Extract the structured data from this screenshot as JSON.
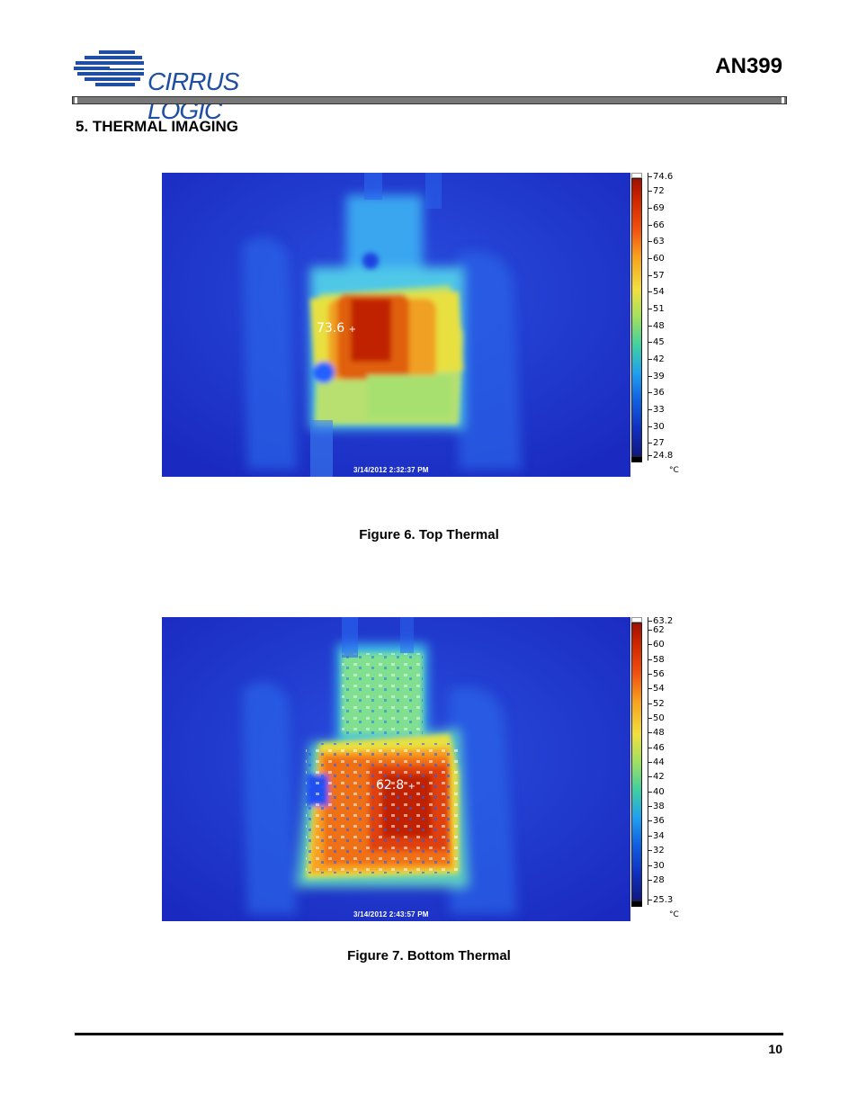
{
  "header": {
    "brand": "CIRRUS LOGIC",
    "doc_id": "AN399"
  },
  "section": {
    "title": "5.  THERMAL IMAGING"
  },
  "figures": [
    {
      "caption": "Figure 6.  Top Thermal",
      "timestamp": "3/14/2012 2:32:37 PM",
      "spot_reading": "73.6",
      "scale_unit": "°C",
      "scale_max": 74.6,
      "scale_min": 24.8,
      "scale_ticks": [
        "74.6",
        "72",
        "69",
        "66",
        "63",
        "60",
        "57",
        "54",
        "51",
        "48",
        "45",
        "42",
        "39",
        "36",
        "33",
        "30",
        "27",
        "24.8"
      ]
    },
    {
      "caption": "Figure 7.  Bottom Thermal",
      "timestamp": "3/14/2012 2:43:57 PM",
      "spot_reading": "62.8",
      "scale_unit": "°C",
      "scale_max": 63.2,
      "scale_min": 25.3,
      "scale_ticks": [
        "63.2",
        "62",
        "60",
        "58",
        "56",
        "54",
        "52",
        "50",
        "48",
        "46",
        "44",
        "42",
        "40",
        "38",
        "36",
        "34",
        "32",
        "30",
        "28",
        "25.3"
      ]
    }
  ],
  "footer": {
    "page_number": "10"
  }
}
